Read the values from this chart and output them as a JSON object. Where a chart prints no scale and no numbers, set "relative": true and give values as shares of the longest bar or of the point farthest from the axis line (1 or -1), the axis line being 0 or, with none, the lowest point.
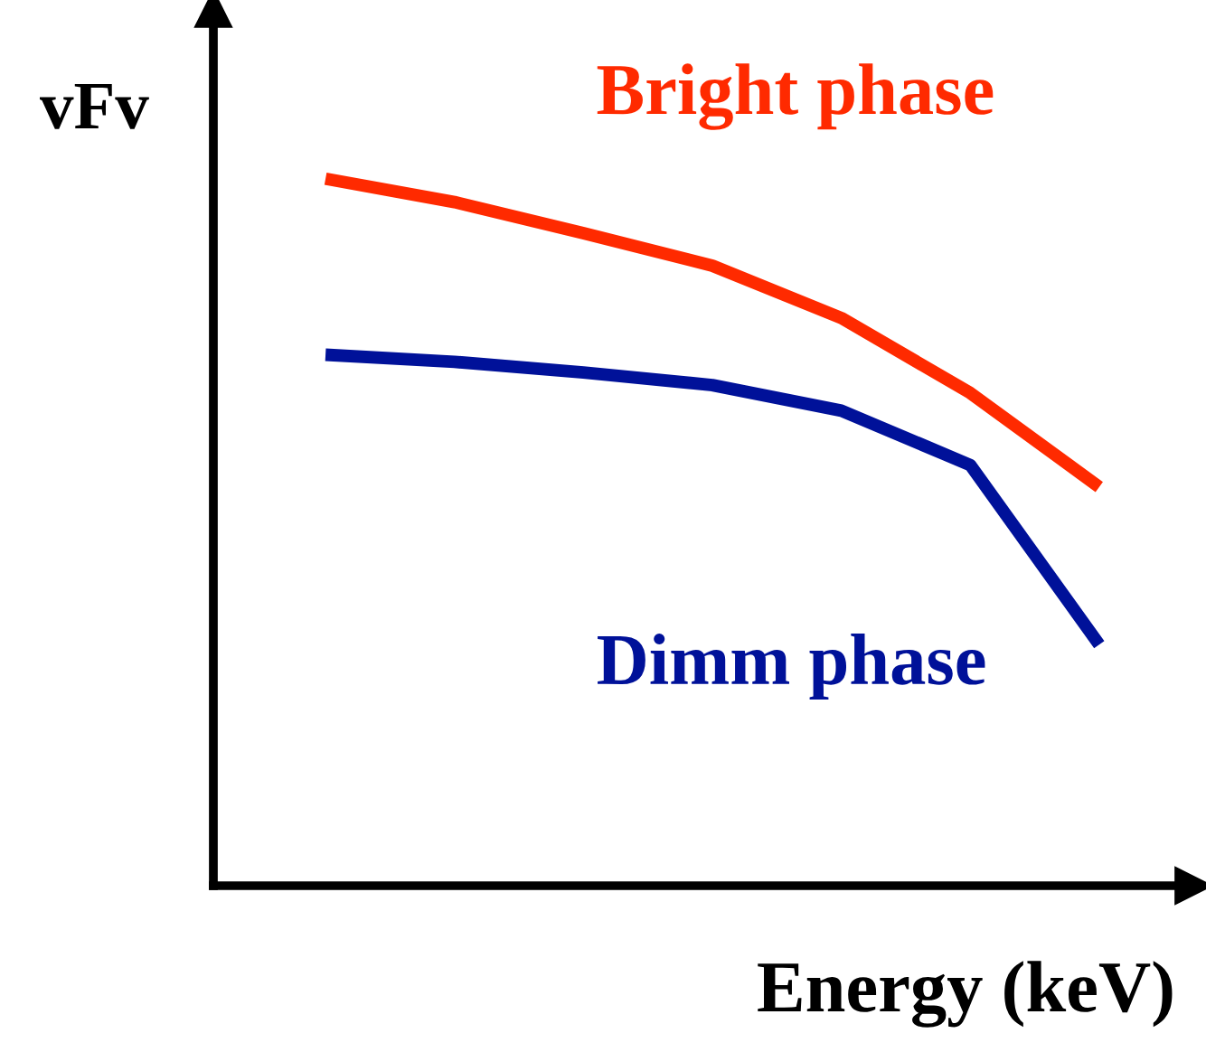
{
  "chart_data": {
    "type": "line",
    "relative": true,
    "ylabel": "vFv",
    "xlabel": "Energy (keV)",
    "categories": [
      null,
      null,
      null,
      null,
      null,
      null,
      null
    ],
    "series": [
      {
        "name": "Bright phase",
        "color": "#ff2a00",
        "values": [
          1.0,
          0.967,
          0.923,
          0.877,
          0.803,
          0.697,
          0.564
        ]
      },
      {
        "name": "Dimm phase",
        "color": "#001199",
        "values": [
          0.751,
          0.741,
          0.726,
          0.708,
          0.672,
          0.595,
          0.341
        ]
      }
    ],
    "legend": false,
    "grid": false,
    "marker": "none",
    "line_style": "solid"
  }
}
